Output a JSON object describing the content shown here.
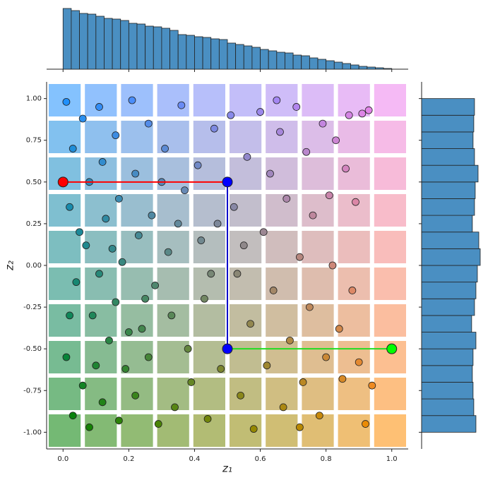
{
  "chart_data": {
    "type": "joint",
    "x_label": "z₁",
    "y_label": "z₂",
    "xlim": [
      -0.05,
      1.05
    ],
    "ylim": [
      -1.1,
      1.1
    ],
    "xticks": [
      {
        "value": 0,
        "label": "0.0"
      },
      {
        "value": 0.2,
        "label": "0.2"
      },
      {
        "value": 0.4,
        "label": "0.4"
      },
      {
        "value": 0.6,
        "label": "0.6"
      },
      {
        "value": 0.8,
        "label": "0.8"
      },
      {
        "value": 1,
        "label": "1.0"
      }
    ],
    "yticks": [
      {
        "value": -1,
        "label": "-1.00"
      },
      {
        "value": -0.75,
        "label": "-0.75"
      },
      {
        "value": -0.5,
        "label": "-0.50"
      },
      {
        "value": -0.25,
        "label": "-0.25"
      },
      {
        "value": 0,
        "label": "0.00"
      },
      {
        "value": 0.25,
        "label": "0.25"
      },
      {
        "value": 0.5,
        "label": "0.50"
      },
      {
        "value": 0.75,
        "label": "0.75"
      },
      {
        "value": 1,
        "label": "1.00"
      }
    ],
    "corner_colors": {
      "top_left": "#1e90ff",
      "bottom_left": "#008000",
      "bottom_right": "#ff8c00",
      "top_right": "#ee82ee"
    },
    "scatter": {
      "x": [
        0.01,
        0.03,
        0.02,
        0.04,
        0.01,
        0.03,
        0.06,
        0.08,
        0.07,
        0.09,
        0.06,
        0.08,
        0.11,
        0.12,
        0.13,
        0.11,
        0.14,
        0.12,
        0.16,
        0.17,
        0.18,
        0.16,
        0.19,
        0.17,
        0.21,
        0.22,
        0.23,
        0.24,
        0.22,
        0.26,
        0.27,
        0.28,
        0.26,
        0.29,
        0.31,
        0.32,
        0.33,
        0.34,
        0.36,
        0.37,
        0.38,
        0.39,
        0.41,
        0.42,
        0.43,
        0.44,
        0.46,
        0.47,
        0.48,
        0.51,
        0.52,
        0.53,
        0.54,
        0.56,
        0.57,
        0.58,
        0.6,
        0.61,
        0.62,
        0.63,
        0.64,
        0.66,
        0.67,
        0.68,
        0.69,
        0.71,
        0.72,
        0.73,
        0.74,
        0.75,
        0.76,
        0.78,
        0.79,
        0.8,
        0.81,
        0.82,
        0.83,
        0.84,
        0.85,
        0.86,
        0.87,
        0.88,
        0.89,
        0.9,
        0.91,
        0.92,
        0.93,
        0.94,
        0.72,
        0.65,
        0.55,
        0.45,
        0.35,
        0.25,
        0.15,
        0.05,
        0.02,
        0.1,
        0.2,
        0.3
      ],
      "y": [
        0.98,
        0.7,
        0.35,
        -0.1,
        -0.55,
        -0.9,
        0.88,
        0.5,
        0.12,
        -0.3,
        -0.72,
        -0.97,
        0.95,
        0.62,
        0.28,
        -0.05,
        -0.45,
        -0.82,
        0.78,
        0.4,
        0.02,
        -0.22,
        -0.62,
        -0.93,
        0.99,
        0.55,
        0.18,
        -0.38,
        -0.78,
        0.85,
        0.3,
        -0.12,
        -0.55,
        -0.95,
        0.7,
        0.08,
        -0.3,
        -0.85,
        0.96,
        0.45,
        -0.5,
        -0.7,
        0.6,
        0.15,
        -0.2,
        -0.92,
        0.82,
        0.25,
        -0.62,
        0.9,
        0.35,
        -0.05,
        -0.78,
        0.65,
        -0.35,
        -0.98,
        0.92,
        0.2,
        -0.6,
        0.55,
        -0.15,
        0.8,
        -0.85,
        0.4,
        -0.45,
        0.95,
        0.05,
        -0.7,
        0.68,
        -0.25,
        0.3,
        -0.9,
        0.85,
        -0.55,
        0.42,
        0.0,
        0.75,
        -0.38,
        -0.68,
        0.58,
        0.9,
        -0.15,
        0.38,
        -0.58,
        0.91,
        -0.95,
        0.93,
        -0.72,
        -0.97,
        0.99,
        0.12,
        -0.05,
        0.25,
        -0.2,
        0.1,
        0.2,
        -0.3,
        -0.6,
        -0.4,
        0.5
      ]
    },
    "lines": [
      {
        "color": "#ff0000",
        "x": [
          0,
          0.5
        ],
        "y": [
          0.5,
          0.5
        ]
      },
      {
        "color": "#0000cc",
        "x": [
          0.5,
          0.5
        ],
        "y": [
          0.5,
          -0.5
        ]
      },
      {
        "color": "#22dd22",
        "x": [
          0.5,
          1
        ],
        "y": [
          -0.5,
          -0.5
        ]
      }
    ],
    "markers": {
      "x": [
        0,
        0.5,
        0.5,
        1
      ],
      "y": [
        0.5,
        0.5,
        -0.5,
        -0.5
      ],
      "colors": [
        "#ff0000",
        "#0000ff",
        "#0000ff",
        "#00ff00"
      ]
    },
    "hist_color": "#4a8fc2",
    "top_hist": {
      "bins": [
        0,
        0.025,
        0.05,
        0.075,
        0.1,
        0.125,
        0.15,
        0.175,
        0.2,
        0.225,
        0.25,
        0.275,
        0.3,
        0.325,
        0.35,
        0.375,
        0.4,
        0.425,
        0.45,
        0.475,
        0.5,
        0.525,
        0.55,
        0.575,
        0.6,
        0.625,
        0.65,
        0.675,
        0.7,
        0.725,
        0.75,
        0.775,
        0.8,
        0.825,
        0.85,
        0.875,
        0.9,
        0.925,
        0.95,
        0.975,
        1
      ],
      "values": [
        86,
        83,
        79,
        78,
        75,
        72,
        71,
        69,
        65,
        64,
        61,
        60,
        58,
        55,
        49,
        48,
        46,
        45,
        43,
        42,
        37,
        35,
        33,
        31,
        28,
        26,
        24,
        23,
        20,
        19,
        16,
        14,
        12,
        10,
        8,
        6,
        4,
        3,
        2,
        1
      ]
    },
    "right_hist": {
      "bins": [
        -1,
        -0.9,
        -0.8,
        -0.7,
        -0.6,
        -0.5,
        -0.4,
        -0.3,
        -0.2,
        -0.1,
        0,
        0.1,
        0.2,
        0.3,
        0.4,
        0.5,
        0.6,
        0.7,
        0.8,
        0.9,
        1
      ],
      "values": [
        76,
        73,
        72,
        71,
        72,
        76,
        70,
        74,
        76,
        78,
        82,
        80,
        71,
        74,
        75,
        79,
        74,
        72,
        73,
        74
      ]
    }
  }
}
